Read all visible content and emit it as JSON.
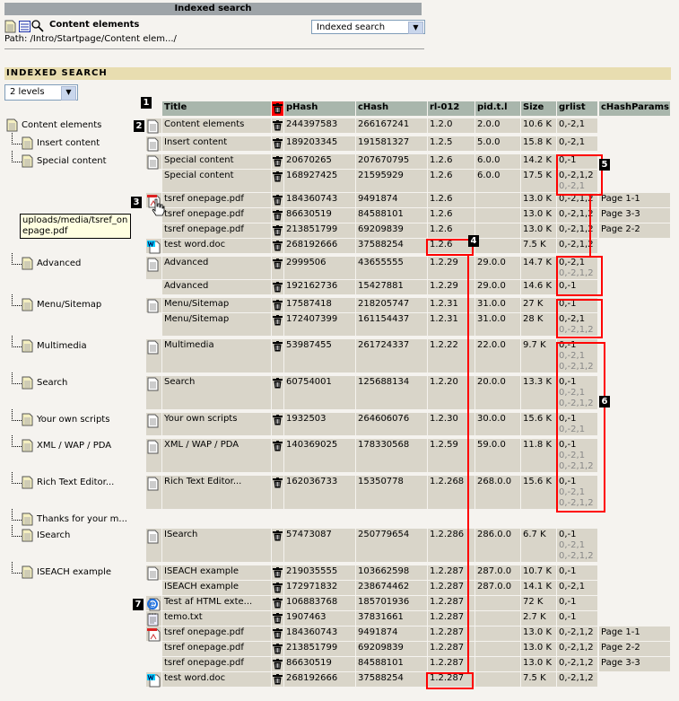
{
  "header": {
    "title": "Indexed search",
    "page_title": "Content elements",
    "path": "Path: /Intro/Startpage/Content elem.../",
    "module_select": "Indexed search"
  },
  "section": {
    "title": "INDEXED SEARCH",
    "levels_select": "2 levels"
  },
  "columns": [
    "Title",
    "",
    "pHash",
    "cHash",
    "rl-012",
    "pid.t.l",
    "Size",
    "grlist",
    "cHashParams"
  ],
  "tooltip": "uploads/media/tsref_onepage.pdf",
  "callouts": [
    "1",
    "2",
    "3",
    "4",
    "5",
    "6",
    "7"
  ],
  "colors": {
    "annotation": "#ff0000",
    "row": "#d9d5c9",
    "header": "#a9b6ac"
  },
  "groups": [
    {
      "tree": "Content elements",
      "level": 0,
      "rows": [
        {
          "icon": "page",
          "title": "Content elements",
          "phash": "244397583",
          "chash": "266167241",
          "rl": "1.2.0",
          "pid": "2.0.0",
          "size": "10.6 K",
          "grlist": [
            "0,-2,1"
          ],
          "params": ""
        }
      ]
    },
    {
      "tree": "Insert content",
      "level": 1,
      "rows": [
        {
          "icon": "page",
          "title": "Insert content",
          "phash": "189203345",
          "chash": "191581327",
          "rl": "1.2.5",
          "pid": "5.0.0",
          "size": "15.8 K",
          "grlist": [
            "0,-2,1"
          ],
          "params": ""
        }
      ]
    },
    {
      "tree": "Special content",
      "level": 1,
      "rows": [
        {
          "icon": "page",
          "title": "Special content",
          "phash": "20670265",
          "chash": "207670795",
          "rl": "1.2.6",
          "pid": "6.0.0",
          "size": "14.2 K",
          "grlist": [
            "0,-1"
          ],
          "params": ""
        },
        {
          "icon": "",
          "title": "Special content",
          "phash": "168927425",
          "chash": "21595929",
          "rl": "1.2.6",
          "pid": "6.0.0",
          "size": "17.5 K",
          "grlist": [
            "0,-2,1,2",
            "0,-2,1"
          ],
          "params": ""
        },
        {
          "icon": "pdf",
          "title": "tsref onepage.pdf",
          "phash": "184360743",
          "chash": "9491874",
          "rl": "1.2.6",
          "pid": "",
          "size": "13.0 K",
          "grlist": [
            "0,-2,1,2"
          ],
          "params": "Page 1-1"
        },
        {
          "icon": "",
          "title": "tsref onepage.pdf",
          "phash": "86630519",
          "chash": "84588101",
          "rl": "1.2.6",
          "pid": "",
          "size": "13.0 K",
          "grlist": [
            "0,-2,1,2"
          ],
          "params": "Page 3-3"
        },
        {
          "icon": "",
          "title": "tsref onepage.pdf",
          "phash": "213851799",
          "chash": "69209839",
          "rl": "1.2.6",
          "pid": "",
          "size": "13.0 K",
          "grlist": [
            "0,-2,1,2"
          ],
          "params": "Page 2-2"
        },
        {
          "icon": "word",
          "title": "test word.doc",
          "phash": "268192666",
          "chash": "37588254",
          "rl": "1.2.6",
          "pid": "",
          "size": "7.5 K",
          "grlist": [
            "0,-2,1,2"
          ],
          "params": ""
        }
      ]
    },
    {
      "tree": "Advanced",
      "level": 1,
      "rows": [
        {
          "icon": "page",
          "title": "Advanced",
          "phash": "2999506",
          "chash": "43655555",
          "rl": "1.2.29",
          "pid": "29.0.0",
          "size": "14.7 K",
          "grlist": [
            "0,-2,1",
            "0,-2,1,2"
          ],
          "params": ""
        },
        {
          "icon": "",
          "title": "Advanced",
          "phash": "192162736",
          "chash": "15427881",
          "rl": "1.2.29",
          "pid": "29.0.0",
          "size": "14.6 K",
          "grlist": [
            "0,-1"
          ],
          "params": ""
        }
      ]
    },
    {
      "tree": "Menu/Sitemap",
      "level": 1,
      "rows": [
        {
          "icon": "page",
          "title": "Menu/Sitemap",
          "phash": "17587418",
          "chash": "218205747",
          "rl": "1.2.31",
          "pid": "31.0.0",
          "size": "27 K",
          "grlist": [
            "0,-1"
          ],
          "params": ""
        },
        {
          "icon": "",
          "title": "Menu/Sitemap",
          "phash": "172407399",
          "chash": "161154437",
          "rl": "1.2.31",
          "pid": "31.0.0",
          "size": "28 K",
          "grlist": [
            "0,-2,1",
            "0,-2,1,2"
          ],
          "params": ""
        }
      ]
    },
    {
      "tree": "Multimedia",
      "level": 1,
      "rows": [
        {
          "icon": "page",
          "title": "Multimedia",
          "phash": "53987455",
          "chash": "261724337",
          "rl": "1.2.22",
          "pid": "22.0.0",
          "size": "9.7 K",
          "grlist": [
            "0,-1",
            "0,-2,1",
            "0,-2,1,2"
          ],
          "params": ""
        }
      ]
    },
    {
      "tree": "Search",
      "level": 1,
      "rows": [
        {
          "icon": "page",
          "title": "Search",
          "phash": "60754001",
          "chash": "125688134",
          "rl": "1.2.20",
          "pid": "20.0.0",
          "size": "13.3 K",
          "grlist": [
            "0,-1",
            "0,-2,1",
            "0,-2,1,2"
          ],
          "params": ""
        }
      ]
    },
    {
      "tree": "Your own scripts",
      "level": 1,
      "rows": [
        {
          "icon": "page",
          "title": "Your own scripts",
          "phash": "1932503",
          "chash": "264606076",
          "rl": "1.2.30",
          "pid": "30.0.0",
          "size": "15.6 K",
          "grlist": [
            "0,-1",
            "0,-2,1"
          ],
          "params": ""
        }
      ]
    },
    {
      "tree": "XML / WAP / PDA",
      "level": 1,
      "rows": [
        {
          "icon": "page",
          "title": "XML / WAP / PDA",
          "phash": "140369025",
          "chash": "178330568",
          "rl": "1.2.59",
          "pid": "59.0.0",
          "size": "11.8 K",
          "grlist": [
            "0,-1",
            "0,-2,1",
            "0,-2,1,2"
          ],
          "params": ""
        }
      ]
    },
    {
      "tree": "Rich Text Editor...",
      "level": 1,
      "rows": [
        {
          "icon": "page",
          "title": "Rich Text Editor...",
          "phash": "162036733",
          "chash": "15350778",
          "rl": "1.2.268",
          "pid": "268.0.0",
          "size": "15.6 K",
          "grlist": [
            "0,-1",
            "0,-2,1",
            "0,-2,1,2"
          ],
          "params": ""
        }
      ]
    },
    {
      "tree": "Thanks for your m...",
      "level": 1,
      "rows": []
    },
    {
      "tree": "ISearch",
      "level": 1,
      "rows": [
        {
          "icon": "page",
          "title": "ISearch",
          "phash": "57473087",
          "chash": "250779654",
          "rl": "1.2.286",
          "pid": "286.0.0",
          "size": "6.7 K",
          "grlist": [
            "0,-1",
            "0,-2,1",
            "0,-2,1,2"
          ],
          "params": ""
        }
      ]
    },
    {
      "tree": "ISEACH example",
      "level": 1,
      "rows": [
        {
          "icon": "page",
          "title": "ISEACH example",
          "phash": "219035555",
          "chash": "103662598",
          "rl": "1.2.287",
          "pid": "287.0.0",
          "size": "10.7 K",
          "grlist": [
            "0,-1"
          ],
          "params": ""
        },
        {
          "icon": "",
          "title": "ISEACH example",
          "phash": "172971832",
          "chash": "238674462",
          "rl": "1.2.287",
          "pid": "287.0.0",
          "size": "14.1 K",
          "grlist": [
            "0,-2,1"
          ],
          "params": ""
        },
        {
          "icon": "html",
          "title": "Test af HTML exte...",
          "phash": "106883768",
          "chash": "185701936",
          "rl": "1.2.287",
          "pid": "",
          "size": "72 K",
          "grlist": [
            "0,-1"
          ],
          "params": ""
        },
        {
          "icon": "txt",
          "title": "temo.txt",
          "phash": "1907463",
          "chash": "37831661",
          "rl": "1.2.287",
          "pid": "",
          "size": "2.7 K",
          "grlist": [
            "0,-1"
          ],
          "params": ""
        },
        {
          "icon": "pdf",
          "title": "tsref onepage.pdf",
          "phash": "184360743",
          "chash": "9491874",
          "rl": "1.2.287",
          "pid": "",
          "size": "13.0 K",
          "grlist": [
            "0,-2,1,2"
          ],
          "params": "Page 1-1"
        },
        {
          "icon": "",
          "title": "tsref onepage.pdf",
          "phash": "213851799",
          "chash": "69209839",
          "rl": "1.2.287",
          "pid": "",
          "size": "13.0 K",
          "grlist": [
            "0,-2,1,2"
          ],
          "params": "Page 2-2"
        },
        {
          "icon": "",
          "title": "tsref onepage.pdf",
          "phash": "86630519",
          "chash": "84588101",
          "rl": "1.2.287",
          "pid": "",
          "size": "13.0 K",
          "grlist": [
            "0,-2,1,2"
          ],
          "params": "Page 3-3"
        },
        {
          "icon": "word",
          "title": "test word.doc",
          "phash": "268192666",
          "chash": "37588254",
          "rl": "1.2.287",
          "pid": "",
          "size": "7.5 K",
          "grlist": [
            "0,-2,1,2"
          ],
          "params": ""
        }
      ]
    }
  ]
}
